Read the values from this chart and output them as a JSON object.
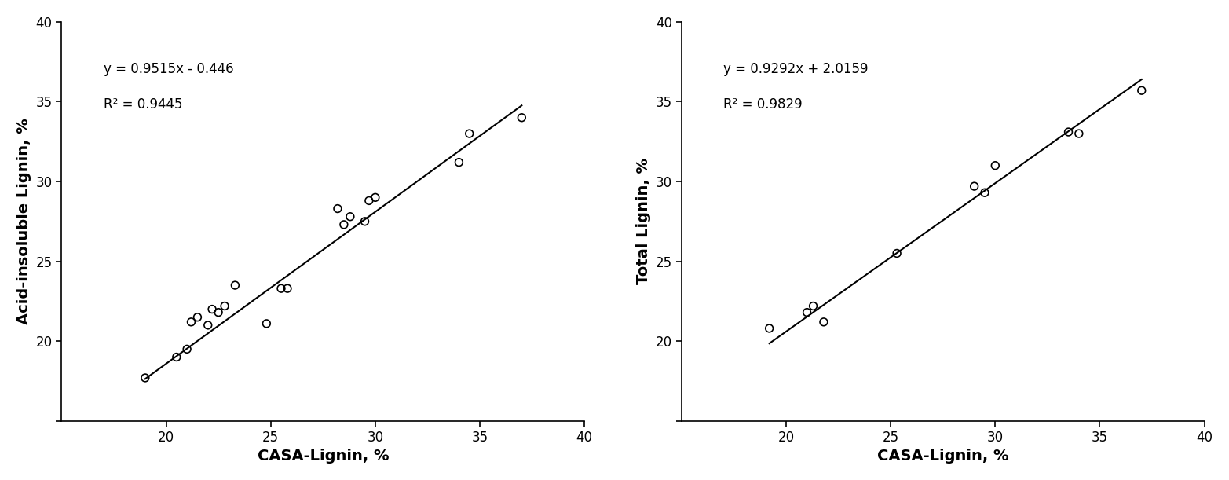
{
  "plot1": {
    "x": [
      19.0,
      20.5,
      21.0,
      21.2,
      21.5,
      22.0,
      22.2,
      22.5,
      22.8,
      23.3,
      24.8,
      25.5,
      25.8,
      28.2,
      28.5,
      28.8,
      29.5,
      29.7,
      30.0,
      34.0,
      34.5,
      37.0
    ],
    "y": [
      17.7,
      19.0,
      19.5,
      21.2,
      21.5,
      21.0,
      22.0,
      21.8,
      22.2,
      23.5,
      21.1,
      23.3,
      23.3,
      28.3,
      27.3,
      27.8,
      27.5,
      28.8,
      29.0,
      31.2,
      33.0,
      34.0
    ],
    "slope": 0.9515,
    "intercept": -0.446,
    "r2": 0.9445,
    "equation": "y = 0.9515x - 0.446",
    "r2_text": "R² = 0.9445",
    "xlabel": "CASA-Lignin, %",
    "ylabel": "Acid-insoluble Lignin, %",
    "xlim": [
      15,
      40
    ],
    "ylim": [
      15,
      40
    ],
    "xticks": [
      20,
      25,
      30,
      35,
      40
    ],
    "yticks": [
      15,
      20,
      25,
      30,
      35,
      40
    ],
    "xline": [
      19.0,
      37.0
    ],
    "yline_start": 17.61,
    "yline_end": 33.75
  },
  "plot2": {
    "x": [
      19.2,
      21.0,
      21.3,
      21.8,
      25.3,
      29.0,
      29.5,
      30.0,
      33.5,
      34.0,
      37.0
    ],
    "y": [
      20.8,
      21.8,
      22.2,
      21.2,
      25.5,
      29.7,
      29.3,
      31.0,
      33.1,
      33.0,
      35.7
    ],
    "slope": 0.9292,
    "intercept": 2.0159,
    "r2": 0.9829,
    "equation": "y = 0.9292x + 2.0159",
    "r2_text": "R² = 0.9829",
    "xlabel": "CASA-Lignin, %",
    "ylabel": "Total Lignin, %",
    "xlim": [
      15,
      40
    ],
    "ylim": [
      15,
      40
    ],
    "xticks": [
      20,
      25,
      30,
      35,
      40
    ],
    "yticks": [
      15,
      20,
      25,
      30,
      35,
      40
    ],
    "xline": [
      19.2,
      37.0
    ],
    "yline_start": 19.87,
    "yline_end": 36.39
  },
  "background_color": "#ffffff",
  "marker_color": "none",
  "marker_edge_color": "#000000",
  "line_color": "#000000",
  "text_color": "#000000",
  "marker_size": 7,
  "marker_linewidth": 1.2,
  "line_width": 1.5,
  "font_size": 12,
  "label_font_size": 14,
  "annotation_font_size": 12
}
